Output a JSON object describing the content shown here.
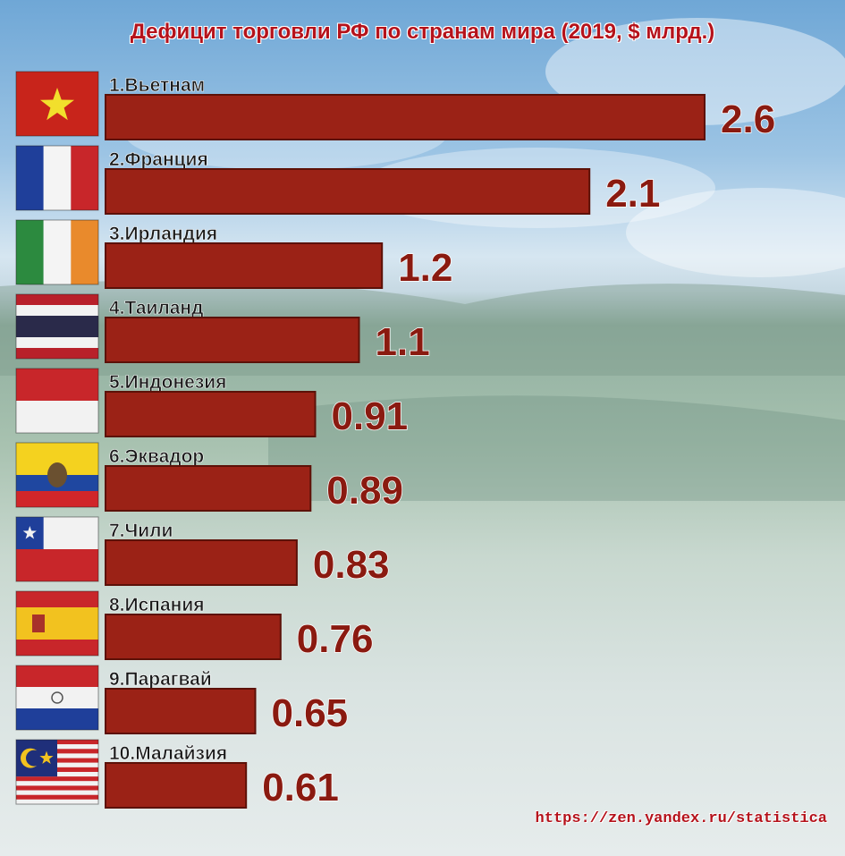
{
  "title": "Дефицит торговли РФ по странам мира (2019, $ млрд.)",
  "footer": "https://zen.yandex.ru/statistica",
  "colors": {
    "bar": "#9b2216",
    "bar_edge": "#5c1108",
    "value_text": "#8a1a10",
    "label_text": "#1a1a1a"
  },
  "chart_data": {
    "type": "bar",
    "orientation": "horizontal",
    "title": "Дефицит торговли РФ по странам мира (2019, $ млрд.)",
    "categories": [
      "1.Вьетнам",
      "2.Франция",
      "3.Ирландия",
      "4.Таиланд",
      "5.Индонезия",
      "6.Эквадор",
      "7.Чили",
      "8.Испания",
      "9.Парагвай",
      "10.Малайзия"
    ],
    "values": [
      2.6,
      2.1,
      1.2,
      1.1,
      0.91,
      0.89,
      0.83,
      0.76,
      0.65,
      0.61
    ],
    "value_labels": [
      "2.6",
      "2.1",
      "1.2",
      "1.1",
      "0.91",
      "0.89",
      "0.83",
      "0.76",
      "0.65",
      "0.61"
    ],
    "flags": [
      "vietnam-flag",
      "france-flag",
      "ireland-flag",
      "thailand-flag",
      "indonesia-flag",
      "ecuador-flag",
      "chile-flag",
      "spain-flag",
      "paraguay-flag",
      "malaysia-flag"
    ],
    "xlim": [
      0,
      2.6
    ],
    "grid": false,
    "legend": "none"
  }
}
